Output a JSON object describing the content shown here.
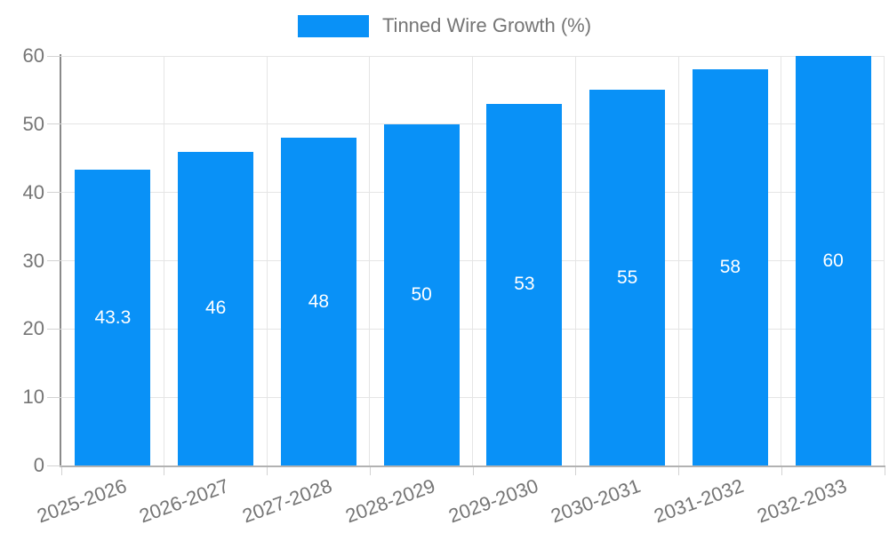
{
  "chart_data": {
    "type": "bar",
    "title": "",
    "series_name": "Tinned Wire Growth (%)",
    "categories": [
      "2025-2026",
      "2026-2027",
      "2027-2028",
      "2028-2029",
      "2029-2030",
      "2030-2031",
      "2031-2032",
      "2032-2033"
    ],
    "values": [
      43.3,
      46,
      48,
      50,
      53,
      55,
      58,
      60
    ],
    "value_labels": [
      "43.3",
      "46",
      "48",
      "50",
      "53",
      "55",
      "58",
      "60"
    ],
    "y_ticks": [
      0,
      10,
      20,
      30,
      40,
      50,
      60
    ],
    "ylim": [
      0,
      60
    ],
    "xlabel": "",
    "ylabel": "",
    "grid": true,
    "legend_position": "top-center",
    "x_tick_rotation_deg": -20,
    "colors": {
      "bar": "#0991f7",
      "bar_value_text": "#ffffff",
      "axis_text": "#757575",
      "gridline": "#e5e5e5",
      "tick_mark": "#d2d2d2",
      "y_axis_line": "#8a8a8a",
      "x_axis_line": "#b2b2b2",
      "background": "#ffffff"
    }
  }
}
